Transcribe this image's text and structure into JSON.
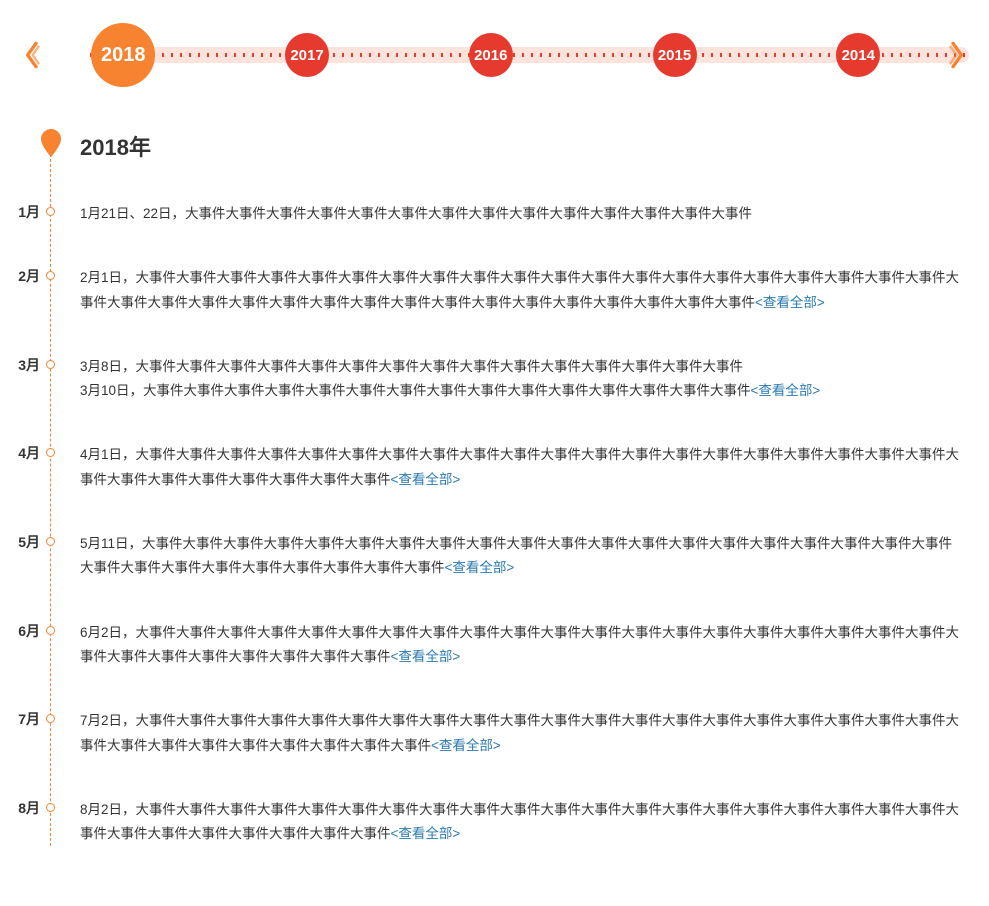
{
  "colors": {
    "selected_year_bg": "#f78331",
    "other_year_bg": "#e63a2e",
    "ribbon_bg": "#fce4dc",
    "ribbon_tick": "#e63a2e",
    "arrow": "#f78331",
    "timeline_line": "#f78331",
    "link": "#2a7ab0",
    "text": "#333333"
  },
  "year_selector": {
    "years": [
      {
        "label": "2018",
        "selected": true,
        "position_pct": 7
      },
      {
        "label": "2017",
        "selected": false,
        "position_pct": 28
      },
      {
        "label": "2016",
        "selected": false,
        "position_pct": 49
      },
      {
        "label": "2015",
        "selected": false,
        "position_pct": 70
      },
      {
        "label": "2014",
        "selected": false,
        "position_pct": 91
      }
    ]
  },
  "timeline": {
    "heading": "2018年",
    "view_all_label": "<查看全部>",
    "months": [
      {
        "label": "1月",
        "events": [
          {
            "text": "1月21日、22日，大事件大事件大事件大事件大事件大事件大事件大事件大事件大事件大事件大事件大事件大事件",
            "has_more": false
          }
        ]
      },
      {
        "label": "2月",
        "events": [
          {
            "text": "2月1日，大事件大事件大事件大事件大事件大事件大事件大事件大事件大事件大事件大事件大事件大事件大事件大事件大事件大事件大事件大事件大事件大事件大事件大事件大事件大事件大事件大事件大事件大事件大事件大事件大事件大事件大事件大事件大事件",
            "has_more": true
          }
        ]
      },
      {
        "label": "3月",
        "events": [
          {
            "text": "3月8日，大事件大事件大事件大事件大事件大事件大事件大事件大事件大事件大事件大事件大事件大事件大事件",
            "has_more": false
          },
          {
            "text": "3月10日，大事件大事件大事件大事件大事件大事件大事件大事件大事件大事件大事件大事件大事件大事件大事件",
            "has_more": true
          }
        ]
      },
      {
        "label": "4月",
        "events": [
          {
            "text": "4月1日，大事件大事件大事件大事件大事件大事件大事件大事件大事件大事件大事件大事件大事件大事件大事件大事件大事件大事件大事件大事件大事件大事件大事件大事件大事件大事件大事件大事件",
            "has_more": true
          }
        ]
      },
      {
        "label": "5月",
        "events": [
          {
            "text": "5月11日，大事件大事件大事件大事件大事件大事件大事件大事件大事件大事件大事件大事件大事件大事件大事件大事件大事件大事件大事件大事件大事件大事件大事件大事件大事件大事件大事件大事件大事件",
            "has_more": true
          }
        ]
      },
      {
        "label": "6月",
        "events": [
          {
            "text": "6月2日，大事件大事件大事件大事件大事件大事件大事件大事件大事件大事件大事件大事件大事件大事件大事件大事件大事件大事件大事件大事件大事件大事件大事件大事件大事件大事件大事件大事件",
            "has_more": true
          }
        ]
      },
      {
        "label": "7月",
        "events": [
          {
            "text": "7月2日，大事件大事件大事件大事件大事件大事件大事件大事件大事件大事件大事件大事件大事件大事件大事件大事件大事件大事件大事件大事件大事件大事件大事件大事件大事件大事件大事件大事件大事件",
            "has_more": true
          }
        ]
      },
      {
        "label": "8月",
        "events": [
          {
            "text": "8月2日，大事件大事件大事件大事件大事件大事件大事件大事件大事件大事件大事件大事件大事件大事件大事件大事件大事件大事件大事件大事件大事件大事件大事件大事件大事件大事件大事件大事件",
            "has_more": true
          }
        ]
      }
    ]
  }
}
